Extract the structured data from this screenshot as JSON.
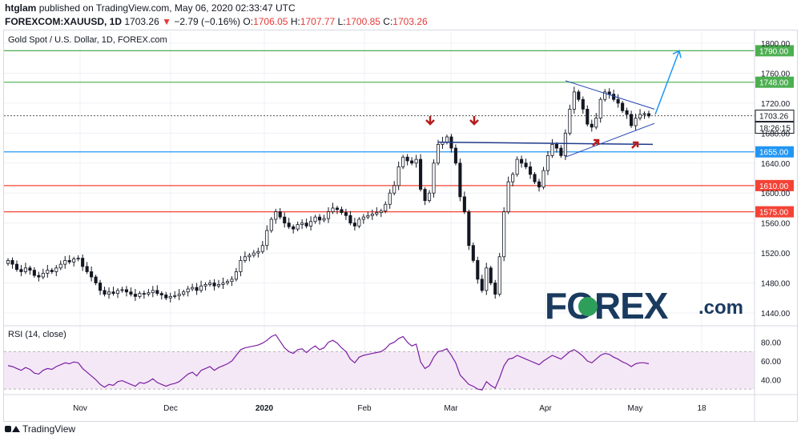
{
  "header": {
    "user": "htglam",
    "published": "published on TradingView.com, May 06, 2020 02:33:47 UTC",
    "symbol": "FOREXCOM:XAUUSD, 1D",
    "last": "1703.26",
    "change": "−2.79 (−0.16%)",
    "o_label": "O:",
    "o_value": "1706.05",
    "h_label": "H:",
    "h_value": "1707.77",
    "l_label": "L:",
    "l_value": "1700.85",
    "c_label": "C:",
    "c_value": "1703.26"
  },
  "chart_data": [
    {
      "type": "candlestick",
      "title": "Gold Spot / U.S. Dollar, 1D, FOREX.com",
      "y_ticks": [
        "1800.00",
        "1760.00",
        "1720.00",
        "1680.00",
        "1640.00",
        "1600.00",
        "1560.00",
        "1520.00",
        "1480.00",
        "1440.00"
      ],
      "ylim": [
        1425,
        1815
      ],
      "x_ticks": [
        "Nov",
        "Dec",
        "2020",
        "Feb",
        "Mar",
        "Apr",
        "May",
        "18"
      ],
      "horizontal_levels": [
        {
          "value": 1790.0,
          "label": "1790.00",
          "color": "#4caf50"
        },
        {
          "value": 1748.0,
          "label": "1748.00",
          "color": "#4caf50"
        },
        {
          "value": 1655.0,
          "label": "1655.00",
          "color": "#2196f3"
        },
        {
          "value": 1610.0,
          "label": "1610.00",
          "color": "#f44336"
        },
        {
          "value": 1575.0,
          "label": "1575.00",
          "color": "#f44336"
        }
      ],
      "last_price": {
        "value": 1703.26,
        "label": "1703.26",
        "countdown": "18:26:15"
      },
      "closes": [
        1510,
        1505,
        1498,
        1495,
        1500,
        1497,
        1490,
        1488,
        1493,
        1497,
        1495,
        1500,
        1505,
        1510,
        1508,
        1512,
        1513,
        1502,
        1495,
        1488,
        1480,
        1470,
        1465,
        1468,
        1466,
        1470,
        1471,
        1468,
        1465,
        1462,
        1466,
        1465,
        1467,
        1470,
        1466,
        1464,
        1460,
        1462,
        1463,
        1465,
        1468,
        1472,
        1474,
        1470,
        1476,
        1478,
        1480,
        1476,
        1478,
        1480,
        1482,
        1485,
        1495,
        1510,
        1515,
        1517,
        1520,
        1522,
        1530,
        1550,
        1565,
        1575,
        1568,
        1560,
        1555,
        1552,
        1558,
        1560,
        1556,
        1562,
        1568,
        1564,
        1566,
        1575,
        1580,
        1578,
        1574,
        1570,
        1560,
        1556,
        1565,
        1568,
        1570,
        1572,
        1574,
        1576,
        1585,
        1600,
        1610,
        1635,
        1648,
        1643,
        1640,
        1645,
        1605,
        1590,
        1600,
        1640,
        1665,
        1668,
        1675,
        1660,
        1640,
        1595,
        1575,
        1530,
        1510,
        1485,
        1470,
        1500,
        1480,
        1465,
        1515,
        1575,
        1615,
        1625,
        1645,
        1640,
        1635,
        1625,
        1615,
        1608,
        1630,
        1650,
        1665,
        1660,
        1650,
        1680,
        1712,
        1735,
        1725,
        1712,
        1692,
        1688,
        1700,
        1725,
        1735,
        1732,
        1725,
        1720,
        1710,
        1705,
        1690,
        1700,
        1705,
        1706,
        1703
      ],
      "rsi": {
        "label": "RSI (14, close)",
        "y_ticks": [
          "80.00",
          "60.00",
          "40.00"
        ],
        "ylim": [
          25,
          95
        ],
        "band": [
          30,
          70
        ],
        "values": [
          55,
          54,
          52,
          50,
          53,
          51,
          47,
          46,
          50,
          52,
          51,
          54,
          56,
          58,
          57,
          59,
          58,
          52,
          48,
          44,
          40,
          35,
          32,
          35,
          34,
          38,
          39,
          37,
          35,
          33,
          37,
          36,
          38,
          41,
          37,
          35,
          33,
          35,
          36,
          38,
          42,
          46,
          48,
          44,
          50,
          52,
          54,
          50,
          53,
          55,
          57,
          60,
          66,
          72,
          74,
          75,
          76,
          77,
          79,
          82,
          86,
          88,
          81,
          74,
          70,
          68,
          72,
          73,
          69,
          73,
          76,
          72,
          74,
          80,
          82,
          79,
          74,
          70,
          62,
          58,
          64,
          66,
          67,
          68,
          69,
          70,
          73,
          78,
          80,
          84,
          86,
          80,
          76,
          78,
          59,
          52,
          55,
          64,
          70,
          71,
          73,
          66,
          58,
          45,
          40,
          35,
          33,
          30,
          29,
          38,
          34,
          31,
          42,
          55,
          62,
          63,
          66,
          64,
          62,
          60,
          58,
          56,
          60,
          63,
          66,
          64,
          62,
          66,
          70,
          72,
          69,
          65,
          60,
          58,
          62,
          66,
          68,
          67,
          64,
          62,
          59,
          57,
          54,
          57,
          58,
          58,
          57
        ]
      }
    }
  ],
  "annotations": {
    "watermark": "FOREX.com",
    "arrow_target": "1790.00"
  },
  "footer": {
    "brand": "TradingView"
  }
}
